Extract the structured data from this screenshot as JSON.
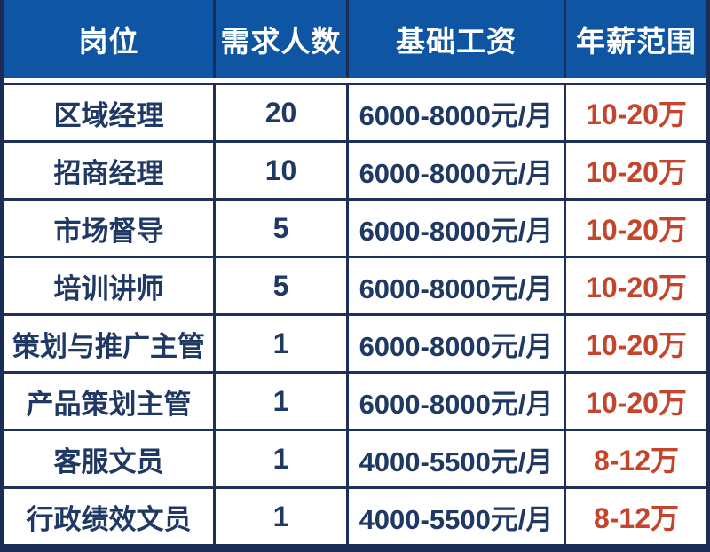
{
  "table": {
    "columns": [
      {
        "label": "岗位"
      },
      {
        "label": "需求人数"
      },
      {
        "label": "基础工资"
      },
      {
        "label": "年薪范围"
      }
    ],
    "rows": [
      {
        "position": "区域经理",
        "headcount": "20",
        "base_salary": "6000-8000元/月",
        "annual_range": "10-20万"
      },
      {
        "position": "招商经理",
        "headcount": "10",
        "base_salary": "6000-8000元/月",
        "annual_range": "10-20万"
      },
      {
        "position": "市场督导",
        "headcount": "5",
        "base_salary": "6000-8000元/月",
        "annual_range": "10-20万"
      },
      {
        "position": "培训讲师",
        "headcount": "5",
        "base_salary": "6000-8000元/月",
        "annual_range": "10-20万"
      },
      {
        "position": "策划与推广主管",
        "headcount": "1",
        "base_salary": "6000-8000元/月",
        "annual_range": "10-20万"
      },
      {
        "position": "产品策划主管",
        "headcount": "1",
        "base_salary": "6000-8000元/月",
        "annual_range": "10-20万"
      },
      {
        "position": "客服文员",
        "headcount": "1",
        "base_salary": "4000-5500元/月",
        "annual_range": "8-12万"
      },
      {
        "position": "行政绩效文员",
        "headcount": "1",
        "base_salary": "4000-5500元/月",
        "annual_range": "8-12万"
      }
    ]
  },
  "colors": {
    "header_bg": "#0e56a3",
    "frame": "#1b2c55",
    "border": "#1d3059",
    "text": "#1f3864",
    "highlight": "#c4452b"
  }
}
